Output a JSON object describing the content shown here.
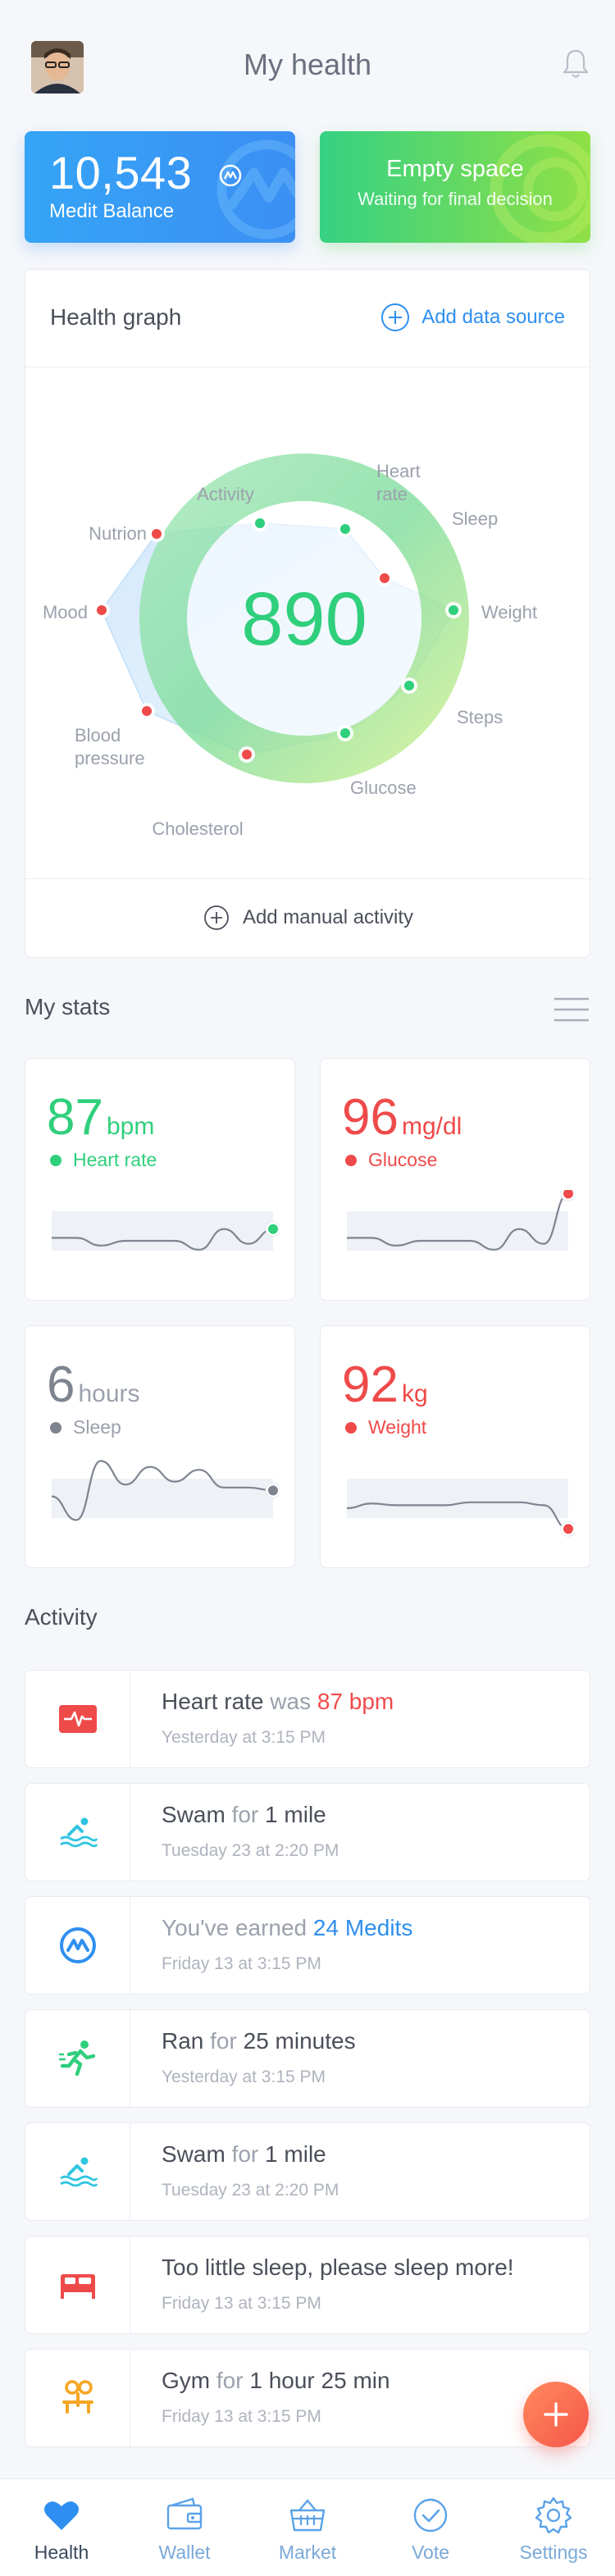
{
  "header": {
    "title": "My health"
  },
  "balance_card": {
    "value": "10,543",
    "label": "Medit Balance"
  },
  "empty_card": {
    "title": "Empty space",
    "subtitle": "Waiting for final decision"
  },
  "health_graph": {
    "title": "Health graph",
    "add_source": "Add data source",
    "score": "890",
    "manual": "Add manual activity",
    "axes": [
      {
        "label": "Activity",
        "status": "good"
      },
      {
        "label": "Heart rate",
        "status": "good"
      },
      {
        "label": "Sleep",
        "status": "bad"
      },
      {
        "label": "Weight",
        "status": "good"
      },
      {
        "label": "Steps",
        "status": "good"
      },
      {
        "label": "Glucose",
        "status": "good"
      },
      {
        "label": "Cholesterol",
        "status": "bad"
      },
      {
        "label": "Blood pressure",
        "status": "bad"
      },
      {
        "label": "Mood",
        "status": "bad"
      },
      {
        "label": "Nutrion",
        "status": "bad"
      }
    ],
    "colors": {
      "good": "#2fcf7c",
      "bad": "#ef4a4a"
    }
  },
  "stats": {
    "title": "My stats",
    "items": [
      {
        "value": "87",
        "unit": "bpm",
        "label": "Heart rate",
        "color": "#2fcf7c",
        "trend": [
          0.55,
          0.55,
          0.42,
          0.5,
          0.5,
          0.5,
          0.35,
          0.7,
          0.45,
          0.7
        ]
      },
      {
        "value": "96",
        "unit": "mg/dl",
        "label": "Glucose",
        "color": "#ef4a4a",
        "trend": [
          0.55,
          0.55,
          0.42,
          0.5,
          0.5,
          0.5,
          0.35,
          0.7,
          0.45,
          1.3
        ]
      },
      {
        "value": "6",
        "unit": "hours",
        "label": "Sleep",
        "color": "#7e8490",
        "trend": [
          0.7,
          0.3,
          1.3,
          0.9,
          1.2,
          0.95,
          1.15,
          0.85,
          0.85,
          0.8
        ]
      },
      {
        "value": "92",
        "unit": "kg",
        "label": "Weight",
        "color": "#ef4a4a",
        "trend": [
          0.5,
          0.58,
          0.55,
          0.55,
          0.55,
          0.6,
          0.6,
          0.6,
          0.55,
          0.15
        ]
      }
    ]
  },
  "activity": {
    "title": "Activity",
    "items": [
      {
        "icon": "heart-monitor-icon",
        "color": "#ef4a4a",
        "parts": [
          [
            "Heart rate ",
            "normal"
          ],
          [
            "was ",
            "muted"
          ],
          [
            "87 bpm",
            "red"
          ]
        ],
        "sub": "Yesterday at 3:15 PM"
      },
      {
        "icon": "swimmer-icon",
        "color": "#2ec4e0",
        "parts": [
          [
            "Swam ",
            "normal"
          ],
          [
            "for ",
            "muted"
          ],
          [
            "1 mile",
            "normal"
          ]
        ],
        "sub": "Tuesday 23 at 2:20 PM"
      },
      {
        "icon": "medit-icon",
        "color": "#2e8ff0",
        "parts": [
          [
            "You've earned ",
            "muted"
          ],
          [
            "24 Medits",
            "blue"
          ]
        ],
        "sub": "Friday 13 at 3:15 PM"
      },
      {
        "icon": "runner-icon",
        "color": "#2fcf7c",
        "parts": [
          [
            "Ran ",
            "normal"
          ],
          [
            "for ",
            "muted"
          ],
          [
            "25 minutes",
            "normal"
          ]
        ],
        "sub": "Yesterday at 3:15 PM"
      },
      {
        "icon": "swimmer-icon",
        "color": "#2ec4e0",
        "parts": [
          [
            "Swam ",
            "normal"
          ],
          [
            "for ",
            "muted"
          ],
          [
            "1 mile",
            "normal"
          ]
        ],
        "sub": "Tuesday 23 at 2:20 PM"
      },
      {
        "icon": "bed-icon",
        "color": "#ef4a4a",
        "parts": [
          [
            "Too little sleep, please sleep more!",
            "normal"
          ]
        ],
        "sub": "Friday 13 at 3:15 PM"
      },
      {
        "icon": "gym-icon",
        "color": "#f6a623",
        "parts": [
          [
            "Gym ",
            "normal"
          ],
          [
            "for ",
            "muted"
          ],
          [
            "1 hour 25 min",
            "normal"
          ]
        ],
        "sub": "Friday 13 at 3:15 PM"
      }
    ]
  },
  "tabs": [
    {
      "label": "Health",
      "icon": "heart-icon",
      "active": true
    },
    {
      "label": "Wallet",
      "icon": "wallet-icon",
      "active": false
    },
    {
      "label": "Market",
      "icon": "basket-icon",
      "active": false
    },
    {
      "label": "Vote",
      "icon": "check-circle-icon",
      "active": false
    },
    {
      "label": "Settings",
      "icon": "gear-icon",
      "active": false
    }
  ]
}
